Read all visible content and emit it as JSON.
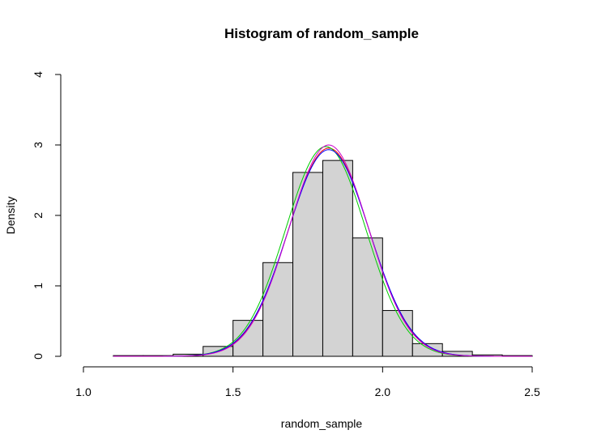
{
  "chart_data": {
    "type": "bar",
    "title": "Histogram of random_sample",
    "xlabel": "random_sample",
    "ylabel": "Density",
    "xlim": [
      1.0,
      2.6
    ],
    "ylim": [
      0,
      4
    ],
    "x_ticks": [
      "1.0",
      "1.5",
      "2.0",
      "2.5"
    ],
    "x_tick_values": [
      1.0,
      1.5,
      2.0,
      2.5
    ],
    "y_ticks": [
      "0",
      "1",
      "2",
      "3",
      "4"
    ],
    "y_tick_values": [
      0,
      1,
      2,
      3,
      4
    ],
    "bin_edges": [
      1.1,
      1.2,
      1.3,
      1.4,
      1.5,
      1.6,
      1.7,
      1.8,
      1.9,
      2.0,
      2.1,
      2.2,
      2.3,
      2.4,
      2.5
    ],
    "values": [
      0.01,
      0.01,
      0.03,
      0.14,
      0.51,
      1.33,
      2.61,
      2.78,
      1.68,
      0.65,
      0.18,
      0.07,
      0.02,
      0.01
    ],
    "grid": false,
    "series": [
      {
        "color": "#ff0000",
        "x_range": [
          1.1,
          2.5
        ],
        "mean": 1.82,
        "sd": 0.135,
        "scale": 1.0
      },
      {
        "color": "#00cc00",
        "x_range": [
          1.1,
          2.5
        ],
        "mean": 1.81,
        "sd": 0.134,
        "scale": 1.0
      },
      {
        "color": "#0000ff",
        "x_range": [
          1.1,
          2.5
        ],
        "mean": 1.82,
        "sd": 0.136,
        "scale": 1.0
      },
      {
        "color": "#cc00cc",
        "x_range": [
          1.1,
          2.5
        ],
        "mean": 1.82,
        "sd": 0.133,
        "scale": 1.0
      }
    ]
  }
}
